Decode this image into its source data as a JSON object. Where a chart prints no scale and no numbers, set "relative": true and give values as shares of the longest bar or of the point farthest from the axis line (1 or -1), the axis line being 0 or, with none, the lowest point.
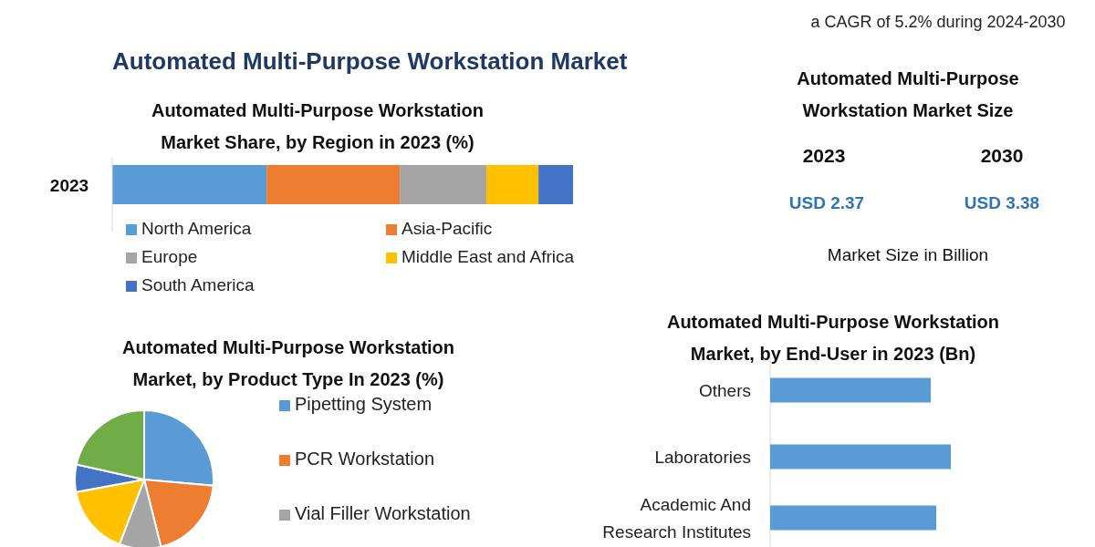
{
  "chart_data": [
    {
      "type": "other",
      "title": "Automated Multi-Purpose Workstation Market",
      "annotations": [
        "a CAGR of 5.2% during 2024-2030"
      ]
    },
    {
      "type": "bar",
      "title": "Automated Multi-Purpose Workstation Market Share, by Region in 2023 (%)",
      "categories": [
        "2023"
      ],
      "orientation": "horizontal",
      "stacked": true,
      "relative": true,
      "legend": "bottom",
      "series": [
        {
          "name": "North America",
          "color": "#5b9bd5",
          "values": [
            0.335
          ]
        },
        {
          "name": "Asia-Pacific",
          "color": "#ed7d31",
          "values": [
            0.289
          ]
        },
        {
          "name": "Europe",
          "color": "#a5a5a5",
          "values": [
            0.188
          ]
        },
        {
          "name": "Middle East and Africa",
          "color": "#ffc000",
          "values": [
            0.113
          ]
        },
        {
          "name": "South America",
          "color": "#4472c4",
          "values": [
            0.075
          ]
        }
      ]
    },
    {
      "type": "other",
      "title": "Automated Multi-Purpose Workstation Market Size",
      "annotations": [
        "2023",
        "2030",
        "USD 2.37",
        "USD 3.38",
        "Market Size in Billion"
      ]
    },
    {
      "type": "pie",
      "title": "Automated Multi-Purpose Workstation Market, by Product Type In 2023 (%)",
      "legend": "right",
      "categories": [
        "Pipetting System",
        "PCR Workstation",
        "Vial Filler Workstation",
        null,
        null,
        null
      ],
      "values": [
        26.4,
        19.7,
        9.7,
        16.3,
        6.4,
        21.5
      ],
      "colors": [
        "#5b9bd5",
        "#ed7d31",
        "#a5a5a5",
        "#ffc000",
        "#4472c4",
        "#70ad47"
      ]
    },
    {
      "type": "bar",
      "title": "Automated Multi-Purpose Workstation Market, by End-User in 2023 (Bn)",
      "orientation": "horizontal",
      "relative": true,
      "categories": [
        "Others",
        "Laboratories",
        "Academic And Research Institutes"
      ],
      "values": [
        0.889,
        1,
        0.919
      ],
      "color": "#5b9bd5"
    }
  ]
}
